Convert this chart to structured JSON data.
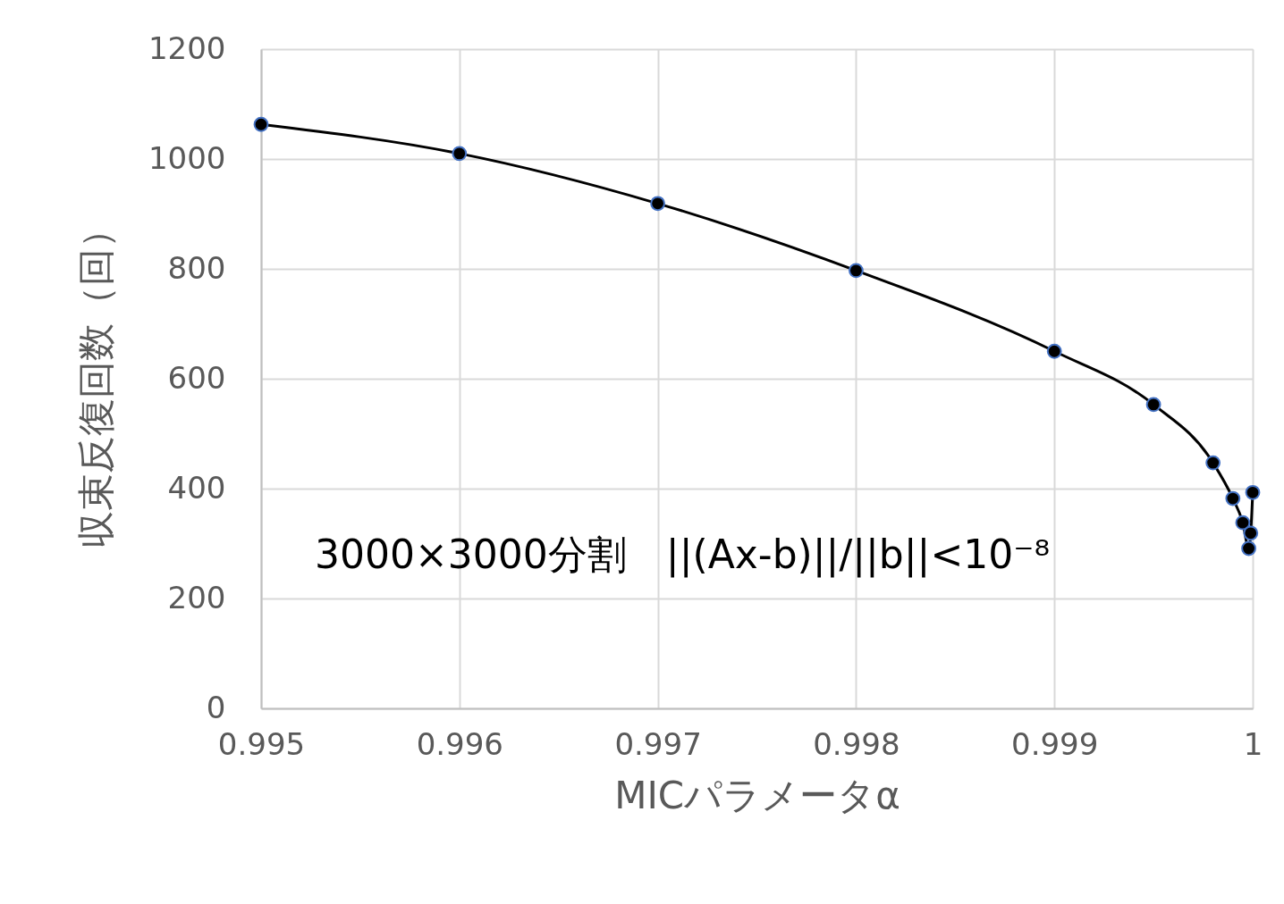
{
  "chart_data": {
    "type": "line",
    "xlabel": "MICパラメータα",
    "ylabel": "収束反復回数（回）",
    "x": [
      0.995,
      0.996,
      0.997,
      0.998,
      0.999,
      0.9995,
      0.9998,
      0.9999,
      0.99995,
      0.99998,
      0.99999,
      1.0
    ],
    "series": [
      {
        "color": "#000000",
        "values": [
          1063,
          1010,
          919,
          797,
          650,
          553,
          447,
          382,
          338,
          291,
          319,
          393
        ]
      }
    ],
    "marker": "circle",
    "line_style": "solid",
    "grid": true,
    "xlim": [
      0.995,
      1.0
    ],
    "xticks": [
      0.995,
      0.996,
      0.997,
      0.998,
      0.999,
      1
    ],
    "ylim": [
      0,
      1200
    ],
    "yticks": [
      0,
      200,
      400,
      600,
      800,
      1000,
      1200
    ],
    "annotations": [
      "3000×3000分割　||(Ax-b)||/||b||<10⁻⁸"
    ]
  }
}
